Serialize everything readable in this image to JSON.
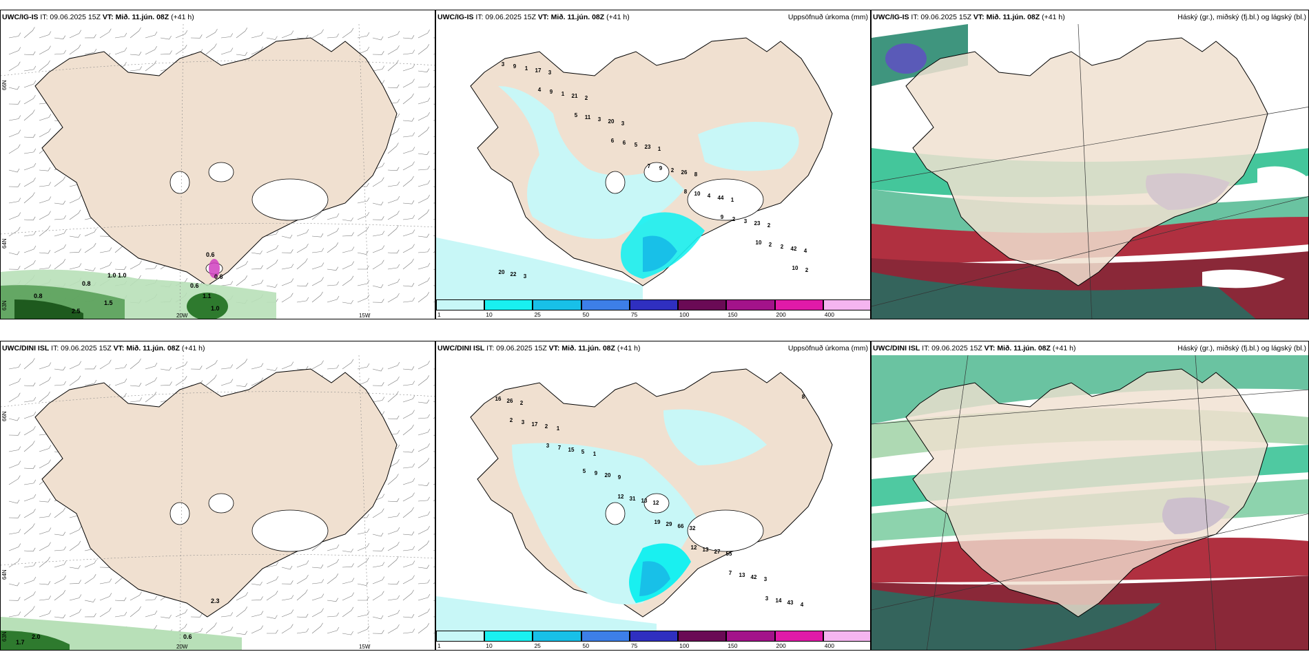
{
  "panels": {
    "p1": {
      "model": "UWC/IG-IS",
      "it": "IT: 09.06.2025 15Z",
      "vt": "VT: Mið. 11.jún. 08Z",
      "lead": "(+41 h)"
    },
    "p2": {
      "model": "UWC/IG-IS",
      "it": "IT: 09.06.2025 15Z",
      "vt": "VT: Mið. 11.jún. 08Z",
      "lead": "(+41 h)",
      "right": "Uppsöfnuð úrkoma (mm)"
    },
    "p3": {
      "model": "UWC/IG-IS",
      "it": "IT: 09.06.2025 15Z",
      "vt": "VT: Mið. 11.jún. 08Z",
      "lead": "(+41 h)",
      "right": "Háský (gr.), miðský (fj.bl.) og lágský (bl.)"
    },
    "p4": {
      "model": "UWC/DINI ISL",
      "it": "IT: 09.06.2025 15Z",
      "vt": "VT: Mið. 11.jún. 08Z",
      "lead": "(+41 h)"
    },
    "p5": {
      "model": "UWC/DINI ISL",
      "it": "IT: 09.06.2025 15Z",
      "vt": "VT: Mið. 11.jún. 08Z",
      "lead": "(+41 h)",
      "right": "Uppsöfnuð úrkoma (mm)"
    },
    "p6": {
      "model": "UWC/DINI ISL",
      "it": "IT: 09.06.2025 15Z",
      "vt": "VT: Mið. 11.jún. 08Z",
      "lead": "(+41 h)",
      "right": "Háský (gr.), miðský (fj.bl.) og lágský (bl.)"
    }
  },
  "axis_labels": {
    "lat66": "66N",
    "lat64": "64N",
    "lat63": "63N",
    "lon20": "20W",
    "lon15": "15W"
  },
  "colorbar": {
    "ticks": [
      "1",
      "10",
      "25",
      "50",
      "75",
      "100",
      "150",
      "200",
      "400"
    ],
    "colors": [
      "#c8f7f7",
      "#19f0f0",
      "#18c0e8",
      "#3d7fe8",
      "#2f2fc0",
      "#6a0a55",
      "#a3138a",
      "#e01aa8",
      "#f5b5f0"
    ]
  },
  "precip_labels_top": [
    "3",
    "4",
    "5",
    "6",
    "7",
    "8",
    "9",
    "10",
    "10",
    "9",
    "9",
    "11",
    "6",
    "9",
    "10",
    "2",
    "2",
    "2",
    "1",
    "1",
    "3",
    "5",
    "2",
    "4",
    "3",
    "2",
    "20",
    "17",
    "21",
    "20",
    "23",
    "26",
    "44",
    "23",
    "42",
    "22",
    "3",
    "2",
    "3",
    "1",
    "8",
    "1",
    "2",
    "4",
    "3"
  ],
  "precip_labels_bottom": [
    "2",
    "3",
    "5",
    "12",
    "19",
    "12",
    "7",
    "3",
    "8",
    "3",
    "7",
    "9",
    "31",
    "29",
    "13",
    "13",
    "14",
    "16",
    "17",
    "15",
    "20",
    "13",
    "66",
    "27",
    "42",
    "43",
    "26",
    "2",
    "5",
    "9",
    "12",
    "32",
    "55",
    "3",
    "4",
    "2",
    "1",
    "1"
  ],
  "wind_values_top": [
    "0.6",
    "0.8",
    "0.8",
    "1.0",
    "1.0",
    "0.6",
    "1.1",
    "1.0",
    "2.5",
    "1.5",
    "0.6"
  ],
  "wind_values_bottom": [
    "2.3",
    "2.0",
    "1.7",
    "0.6"
  ]
}
